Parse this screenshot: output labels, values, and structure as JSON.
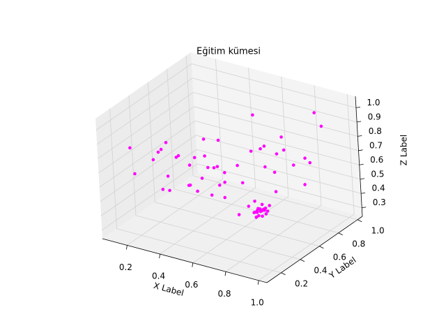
{
  "chart_data": {
    "type": "scatter3d",
    "title": "Eğitim kümesi",
    "xlabel": "X Label",
    "ylabel": "Y Label",
    "zlabel": "Z Label",
    "color": "#ff00ff",
    "xlim": [
      0.05,
      1.05
    ],
    "ylim": [
      0.05,
      1.05
    ],
    "zlim": [
      0.24,
      1.08
    ],
    "xticks": [
      0.2,
      0.4,
      0.6,
      0.8,
      {
        "value": 1,
        "label": "1.0"
      }
    ],
    "yticks": [
      0.2,
      0.4,
      0.6,
      0.8,
      {
        "value": 1,
        "label": "1.0"
      }
    ],
    "zticks": [
      0.3,
      0.4,
      0.5,
      0.6,
      0.7,
      0.8,
      0.9,
      {
        "value": 1,
        "label": "1.0"
      }
    ],
    "grid": true,
    "x": [
      0.12,
      0.2,
      0.15,
      0.3,
      0.25,
      0.4,
      0.35,
      0.5,
      0.45,
      0.6,
      0.55,
      0.7,
      0.65,
      0.8,
      0.75,
      0.9,
      0.85,
      0.95,
      0.18,
      0.28,
      0.38,
      0.48,
      0.58,
      0.68,
      0.78,
      0.88,
      0.22,
      0.32,
      0.42,
      0.52,
      0.62,
      0.72,
      0.82,
      0.92,
      0.14,
      0.34,
      0.54,
      0.74,
      0.94,
      0.26,
      0.46,
      0.66,
      0.86,
      0.16,
      0.36,
      0.56,
      0.76,
      0.96,
      0.44,
      0.64,
      0.74,
      0.76,
      0.78,
      0.75,
      0.73,
      0.77,
      0.79,
      0.76,
      0.74,
      0.78,
      0.75,
      0.77,
      0.72,
      0.8,
      0.76,
      0.75,
      0.78,
      0.74,
      0.77,
      0.76
    ],
    "y": [
      0.3,
      0.5,
      0.7,
      0.2,
      0.8,
      0.4,
      0.6,
      0.9,
      0.3,
      0.7,
      0.5,
      0.85,
      0.2,
      0.6,
      0.4,
      0.75,
      0.95,
      0.55,
      0.45,
      0.65,
      0.15,
      0.75,
      0.35,
      0.9,
      0.25,
      0.5,
      0.85,
      0.4,
      0.55,
      0.2,
      0.8,
      0.6,
      0.35,
      0.9,
      0.6,
      0.8,
      0.45,
      0.7,
      0.3,
      0.35,
      0.65,
      0.5,
      0.8,
      0.2,
      0.25,
      0.9,
      0.15,
      0.7,
      0.4,
      0.3,
      0.5,
      0.48,
      0.52,
      0.46,
      0.54,
      0.5,
      0.47,
      0.53,
      0.49,
      0.51,
      0.55,
      0.45,
      0.5,
      0.49,
      0.52,
      0.47,
      0.54,
      0.51,
      0.48,
      0.5
    ],
    "z": [
      0.6,
      0.75,
      0.55,
      0.8,
      0.65,
      0.7,
      0.5,
      0.85,
      0.62,
      0.72,
      0.58,
      0.78,
      0.66,
      0.68,
      0.52,
      0.74,
      0.95,
      0.8,
      0.7,
      0.6,
      0.64,
      0.56,
      0.76,
      0.66,
      0.54,
      0.88,
      0.5,
      0.73,
      0.62,
      0.69,
      0.57,
      0.82,
      0.6,
      0.9,
      0.45,
      0.67,
      0.71,
      0.48,
      0.63,
      0.79,
      0.55,
      0.61,
      0.52,
      0.84,
      0.58,
      0.65,
      0.7,
      0.75,
      0.53,
      0.68,
      0.44,
      0.42,
      0.46,
      0.45,
      0.43,
      0.41,
      0.47,
      0.44,
      0.4,
      0.45,
      0.43,
      0.46,
      0.42,
      0.44,
      0.48,
      0.41,
      0.43,
      0.45,
      0.47,
      0.44
    ]
  }
}
